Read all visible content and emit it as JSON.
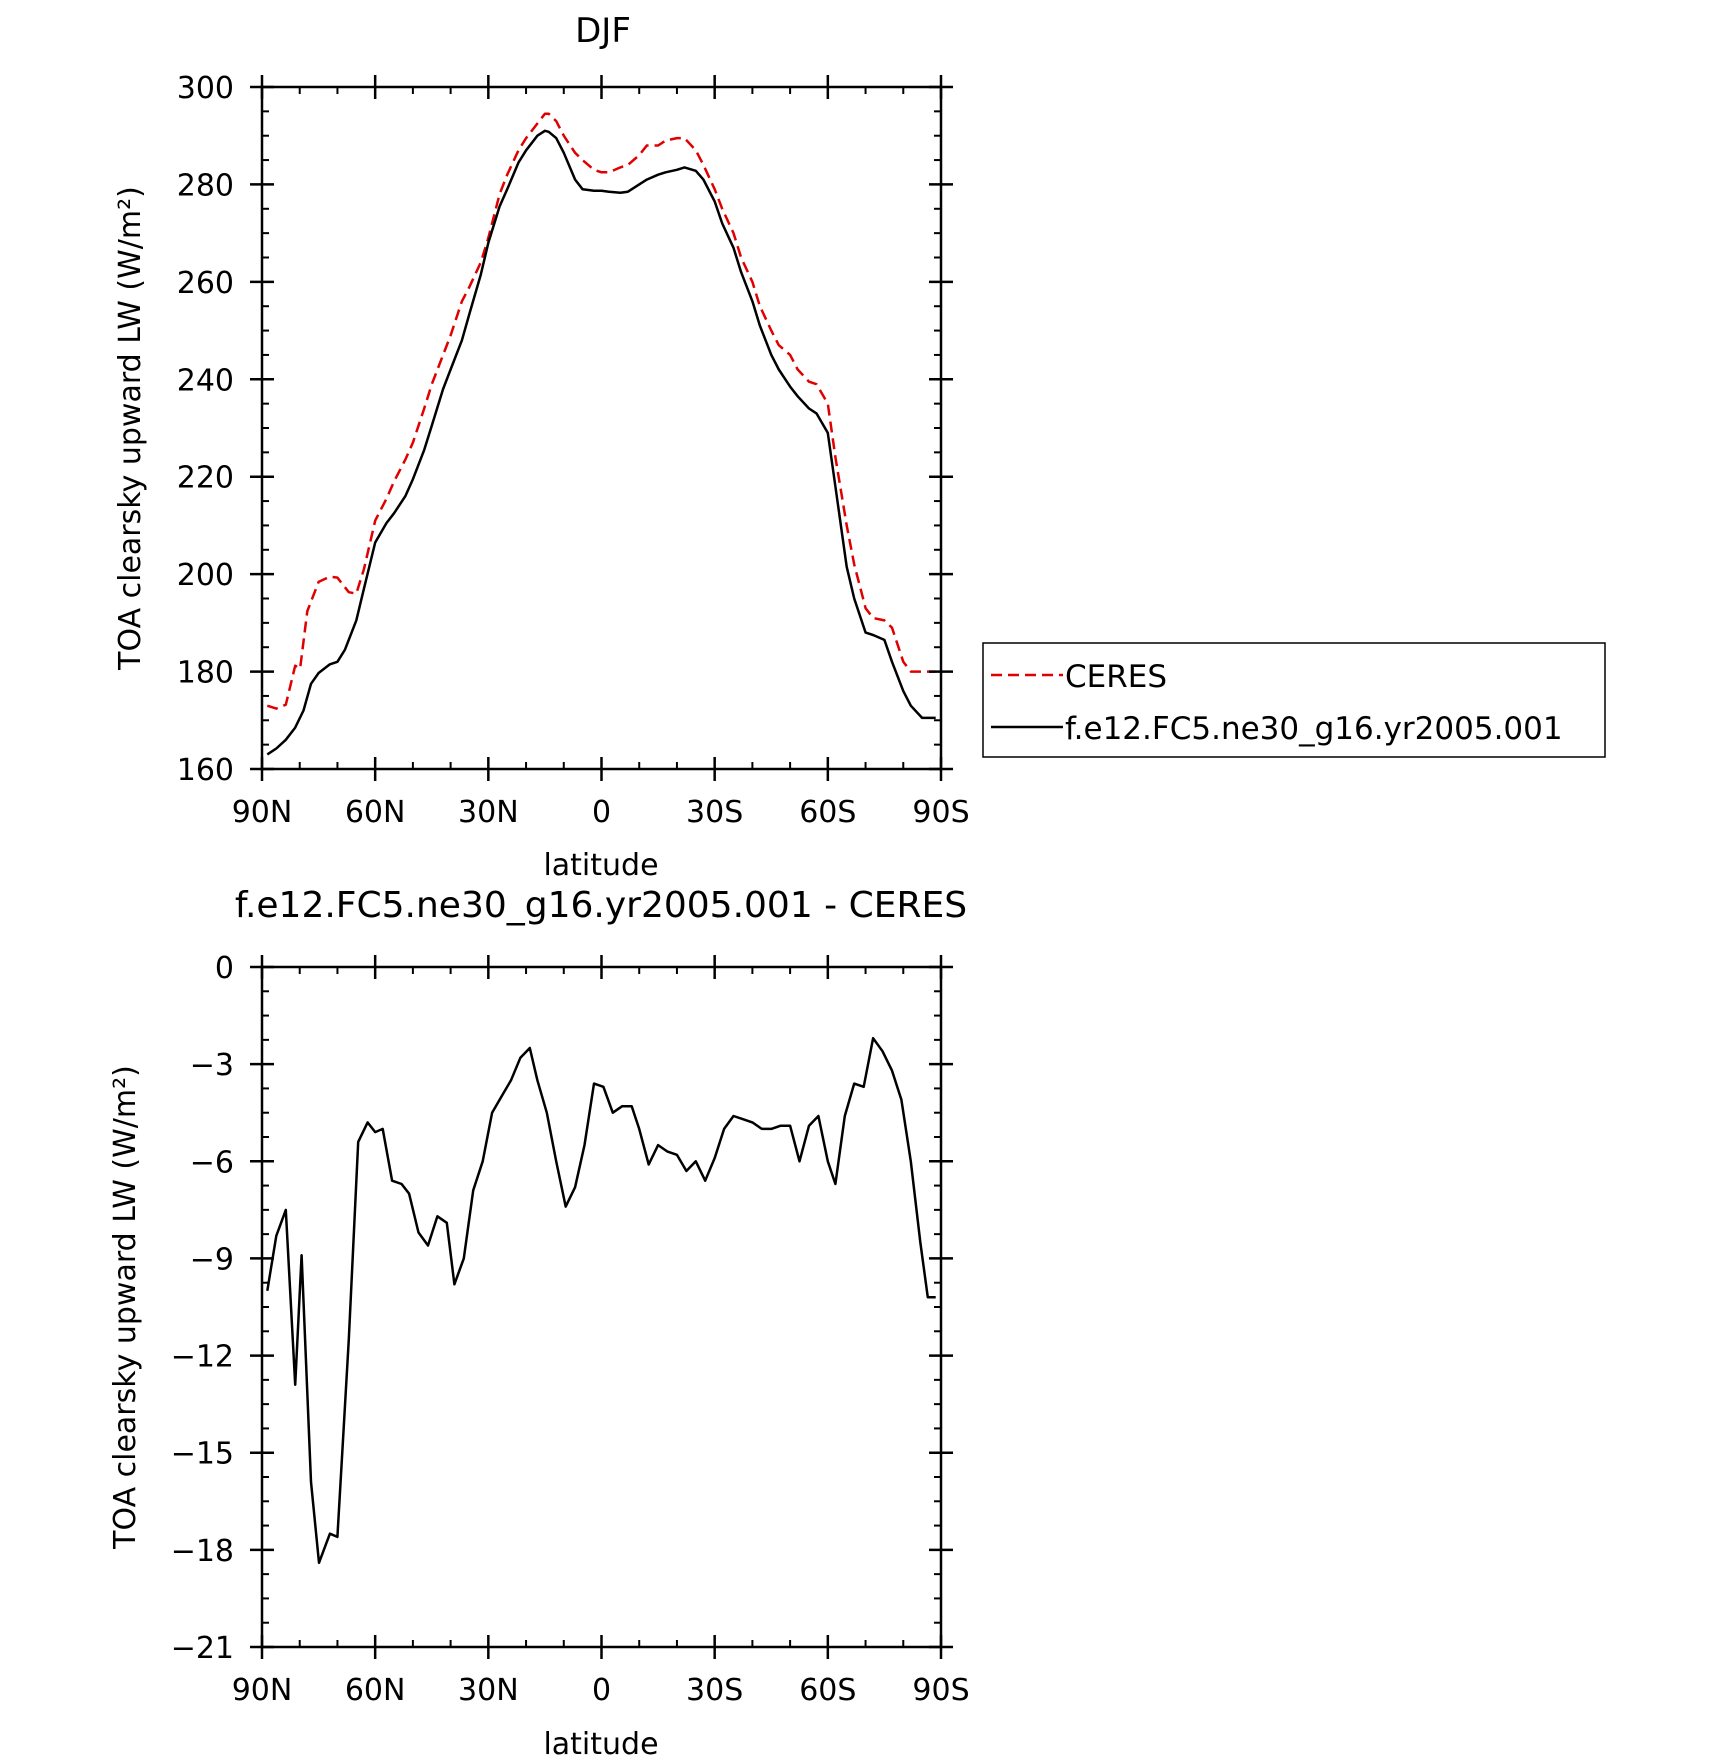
{
  "chart_data": [
    {
      "type": "line",
      "title": "DJF",
      "xlabel": "latitude",
      "ylabel": "TOA clearsky upward LW (W/m²)",
      "ylim": [
        160,
        300
      ],
      "yticks": [
        160,
        180,
        200,
        220,
        240,
        260,
        280,
        300
      ],
      "xlim": [
        90,
        -90
      ],
      "xticks": [
        {
          "value": 90,
          "label": "90N"
        },
        {
          "value": 60,
          "label": "60N"
        },
        {
          "value": 30,
          "label": "30N"
        },
        {
          "value": 0,
          "label": "0"
        },
        {
          "value": -30,
          "label": "30S"
        },
        {
          "value": -60,
          "label": "60S"
        },
        {
          "value": -90,
          "label": "90S"
        }
      ],
      "legend": {
        "position": "right"
      },
      "grid": false,
      "series": [
        {
          "name": "CERES",
          "color": "#e00000",
          "dash": "dashed",
          "x": [
            88.6,
            86.2,
            83.7,
            81.2,
            79.9,
            78.0,
            75.0,
            72.0,
            70.0,
            67.0,
            65.0,
            63.0,
            60.0,
            57.0,
            55.0,
            52.0,
            50.0,
            47.0,
            45.0,
            42.0,
            40.0,
            37.0,
            35.0,
            32.0,
            30.0,
            27.0,
            25.0,
            22.0,
            20.0,
            17.0,
            15.0,
            14.0,
            12.0,
            10.0,
            7.0,
            5.0,
            2.0,
            0.0,
            -2.0,
            -5.0,
            -7.0,
            -10.0,
            -12.0,
            -15.0,
            -17.0,
            -20.0,
            -22.0,
            -25.0,
            -27.0,
            -30.0,
            -32.0,
            -35.0,
            -37.0,
            -40.0,
            -42.0,
            -45.0,
            -47.0,
            -50.0,
            -52.0,
            -55.0,
            -57.0,
            -60.0,
            -62.0,
            -65.0,
            -67.0,
            -70.0,
            -72.0,
            -75.0,
            -77.0,
            -80.0,
            -82.0,
            -85.0,
            -87.0,
            -88.6
          ],
          "y": [
            173.0,
            172.4,
            173.2,
            181.2,
            180.6,
            192.4,
            198.4,
            199.5,
            199.3,
            196.3,
            196.0,
            201.0,
            211.0,
            215.5,
            219.0,
            223.5,
            227.0,
            234.0,
            239.0,
            245.0,
            249.0,
            256.0,
            259.0,
            264.0,
            269.0,
            278.0,
            282.0,
            287.0,
            289.5,
            292.5,
            294.5,
            294.5,
            293.0,
            290.0,
            286.5,
            285.0,
            283.0,
            282.5,
            282.5,
            283.5,
            284.0,
            286.0,
            288.0,
            288.0,
            289.0,
            289.5,
            289.5,
            287.0,
            284.0,
            279.0,
            275.0,
            270.0,
            265.0,
            260.0,
            255.0,
            250.0,
            247.0,
            245.0,
            242.0,
            239.5,
            239.0,
            235.0,
            224.0,
            210.0,
            202.0,
            193.0,
            191.0,
            190.5,
            189.0,
            182.0,
            180.0,
            180.0,
            180.0,
            180.0
          ]
        },
        {
          "name": "f.e12.FC5.ne30_g16.yr2005.001",
          "color": "#000000",
          "dash": "solid",
          "x": [
            88.6,
            86.2,
            83.7,
            81.2,
            79.0,
            77.0,
            75.0,
            72.0,
            70.0,
            68.0,
            65.0,
            63.0,
            60.0,
            57.0,
            55.0,
            52.0,
            50.0,
            47.0,
            45.0,
            42.0,
            40.0,
            37.0,
            35.0,
            32.0,
            30.0,
            27.0,
            25.0,
            22.0,
            20.0,
            17.0,
            15.0,
            14.0,
            12.0,
            10.0,
            7.0,
            5.0,
            2.0,
            0.0,
            -2.0,
            -5.0,
            -7.0,
            -10.0,
            -12.0,
            -15.0,
            -17.0,
            -20.0,
            -22.0,
            -25.0,
            -27.0,
            -30.0,
            -32.0,
            -35.0,
            -37.0,
            -40.0,
            -42.0,
            -45.0,
            -47.0,
            -50.0,
            -52.0,
            -55.0,
            -57.0,
            -60.0,
            -62.0,
            -65.0,
            -67.0,
            -70.0,
            -72.0,
            -75.0,
            -77.0,
            -80.0,
            -82.0,
            -85.0,
            -87.0,
            -88.6
          ],
          "y": [
            163.0,
            164.2,
            166.0,
            168.5,
            172.0,
            177.5,
            179.7,
            181.5,
            182.0,
            184.5,
            190.5,
            197.0,
            206.5,
            210.5,
            212.5,
            216.0,
            219.5,
            225.5,
            230.5,
            238.0,
            242.0,
            248.0,
            253.5,
            261.5,
            268.0,
            275.5,
            279.0,
            284.5,
            287.0,
            290.0,
            291.0,
            290.8,
            289.5,
            286.5,
            281.0,
            279.0,
            278.7,
            278.7,
            278.5,
            278.3,
            278.5,
            280.0,
            281.0,
            282.0,
            282.5,
            283.0,
            283.5,
            282.8,
            281.0,
            276.5,
            272.0,
            267.0,
            262.0,
            256.0,
            251.0,
            245.0,
            242.0,
            238.5,
            236.5,
            234.0,
            233.0,
            229.0,
            218.0,
            201.5,
            195.0,
            188.0,
            187.5,
            186.5,
            182.0,
            176.0,
            173.0,
            170.5,
            170.5,
            170.5
          ]
        }
      ]
    },
    {
      "type": "line",
      "title": "f.e12.FC5.ne30_g16.yr2005.001 - CERES",
      "xlabel": "latitude",
      "ylabel": "TOA clearsky upward LW (W/m²)",
      "ylim": [
        -21,
        0
      ],
      "yticks": [
        -21,
        -18,
        -15,
        -12,
        -9,
        -6,
        -3,
        0
      ],
      "xlim": [
        90,
        -90
      ],
      "xticks": [
        {
          "value": 90,
          "label": "90N"
        },
        {
          "value": 60,
          "label": "60N"
        },
        {
          "value": 30,
          "label": "30N"
        },
        {
          "value": 0,
          "label": "0"
        },
        {
          "value": -30,
          "label": "30S"
        },
        {
          "value": -60,
          "label": "60S"
        },
        {
          "value": -90,
          "label": "90S"
        }
      ],
      "grid": false,
      "series": [
        {
          "color": "#000000",
          "dash": "solid",
          "x": [
            88.6,
            86.2,
            83.7,
            81.2,
            79.5,
            77.0,
            74.9,
            72.0,
            70.0,
            67.0,
            64.5,
            62.0,
            60.0,
            58.0,
            55.5,
            53.0,
            51.0,
            48.5,
            46.0,
            43.5,
            41.0,
            39.0,
            36.5,
            34.0,
            31.5,
            29.0,
            26.5,
            24.0,
            21.5,
            19.0,
            17.0,
            14.5,
            12.0,
            9.5,
            7.0,
            4.5,
            2.0,
            -0.5,
            -3.0,
            -5.5,
            -8.0,
            -10.0,
            -12.5,
            -15.0,
            -17.5,
            -20.0,
            -22.5,
            -25.0,
            -27.5,
            -30.0,
            -32.5,
            -35.0,
            -37.5,
            -40.0,
            -42.5,
            -45.0,
            -47.5,
            -50.0,
            -52.5,
            -55.0,
            -57.5,
            -60.0,
            -62.0,
            -64.5,
            -67.0,
            -69.5,
            -72.0,
            -74.5,
            -77.0,
            -79.5,
            -82.0,
            -84.5,
            -86.5,
            -88.6
          ],
          "y": [
            -10.0,
            -8.3,
            -7.5,
            -12.9,
            -8.9,
            -15.9,
            -18.4,
            -17.5,
            -17.6,
            -11.5,
            -5.4,
            -4.8,
            -5.1,
            -5.0,
            -6.6,
            -6.7,
            -7.0,
            -8.2,
            -8.6,
            -7.7,
            -7.9,
            -9.8,
            -9.0,
            -6.9,
            -6.0,
            -4.5,
            -4.0,
            -3.5,
            -2.8,
            -2.5,
            -3.5,
            -4.5,
            -6.0,
            -7.4,
            -6.8,
            -5.5,
            -3.6,
            -3.7,
            -4.5,
            -4.3,
            -4.3,
            -5.0,
            -6.1,
            -5.5,
            -5.7,
            -5.8,
            -6.3,
            -6.0,
            -6.6,
            -5.9,
            -5.0,
            -4.6,
            -4.7,
            -4.8,
            -5.0,
            -5.0,
            -4.9,
            -4.9,
            -6.0,
            -4.9,
            -4.6,
            -6.0,
            -6.7,
            -4.6,
            -3.6,
            -3.7,
            -2.2,
            -2.6,
            -3.2,
            -4.1,
            -6.0,
            -8.5,
            -10.2,
            -10.2
          ]
        }
      ]
    }
  ]
}
